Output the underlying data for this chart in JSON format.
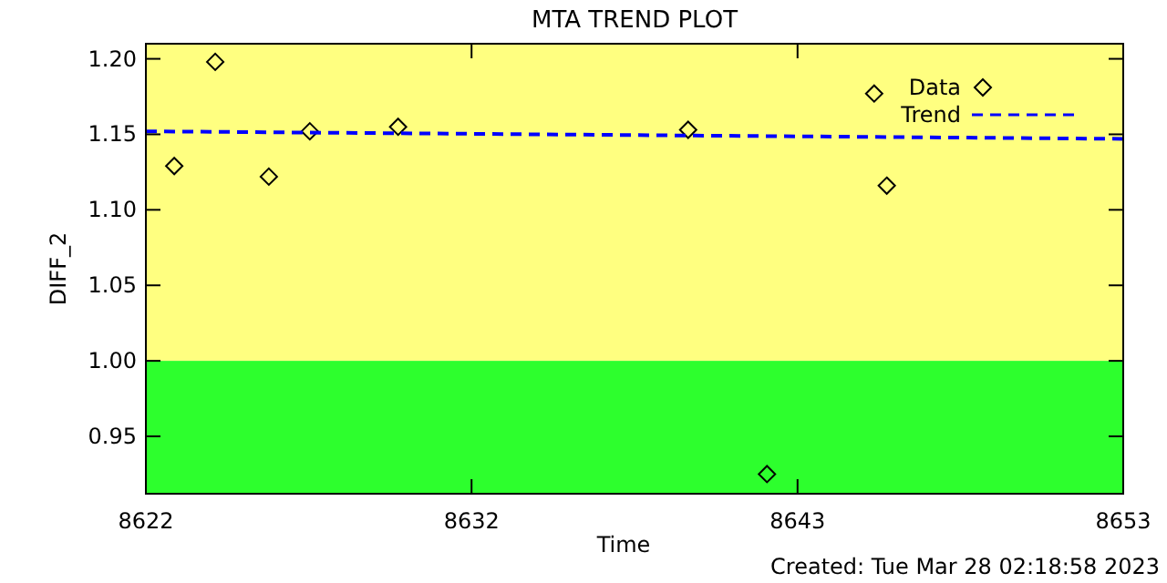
{
  "chart_data": {
    "type": "scatter",
    "title": "MTA TREND PLOT",
    "xlabel": "Time",
    "ylabel": "DIFF_2",
    "annotations": [
      "Created: Tue Mar 28 02:18:58 2023"
    ],
    "xlim": [
      8622,
      8653
    ],
    "xticks": [
      8622,
      {
        "value": 8632.33,
        "label": "8632"
      },
      {
        "value": 8642.67,
        "label": "8643"
      },
      8653
    ],
    "ylim": [
      0.912,
      1.21
    ],
    "yticks": [
      {
        "value": 0.95,
        "label": "0.95"
      },
      {
        "value": 1.0,
        "label": "1.00"
      },
      {
        "value": 1.05,
        "label": "1.05"
      },
      {
        "value": 1.1,
        "label": "1.10"
      },
      {
        "value": 1.15,
        "label": "1.15"
      },
      {
        "value": 1.2,
        "label": "1.20"
      }
    ],
    "bands": [
      {
        "axis": "y",
        "from": 1.0,
        "to": 1.21,
        "color": "#ffff80"
      },
      {
        "axis": "y",
        "from": 0.912,
        "to": 1.0,
        "color": "#2dff2d"
      }
    ],
    "legend": "top right",
    "grid": false,
    "series": [
      {
        "name": "Data",
        "marker": "diamond",
        "color": "#000000",
        "x": [
          8622.9,
          8624.2,
          8625.9,
          8627.2,
          8630.0,
          8639.2,
          8641.7,
          8645.1,
          8645.5
        ],
        "values": [
          1.129,
          1.198,
          1.122,
          1.152,
          1.155,
          1.153,
          0.925,
          1.177,
          1.116
        ]
      },
      {
        "name": "Trend",
        "type": "line",
        "marker": "none",
        "line_style": "dashed",
        "color": "#0000ff",
        "x": [
          8622,
          8653
        ],
        "values": [
          1.152,
          1.147
        ]
      }
    ]
  }
}
